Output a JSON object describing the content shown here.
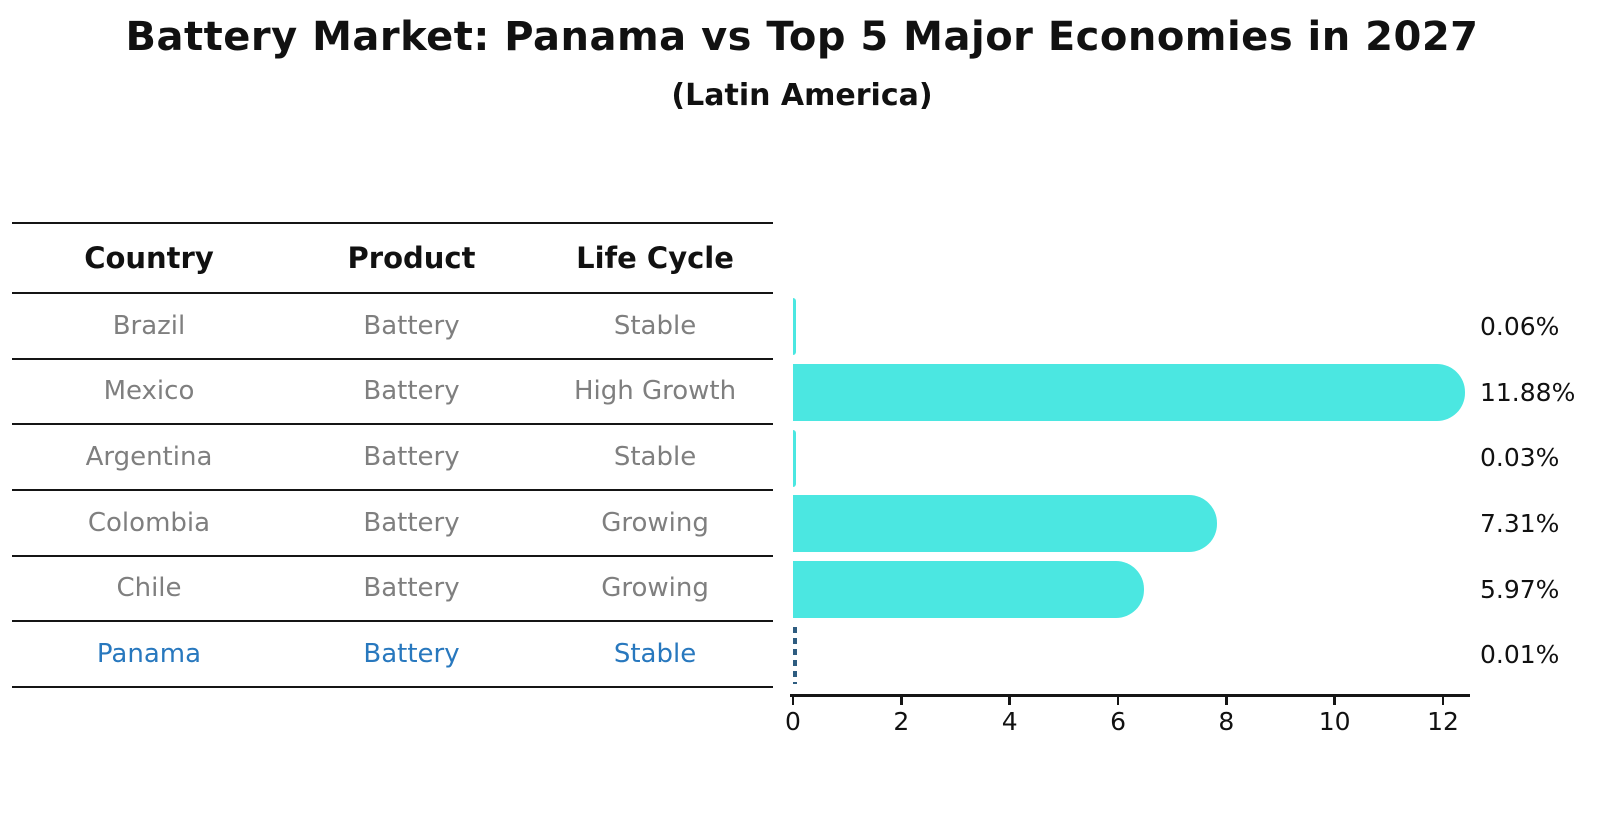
{
  "title": "Battery Market: Panama vs Top 5 Major Economies in 2027",
  "subtitle": "(Latin America)",
  "table": {
    "columns": [
      "Country",
      "Product",
      "Life Cycle"
    ],
    "rows": [
      {
        "country": "Brazil",
        "product": "Battery",
        "life_cycle": "Stable",
        "highlight": false
      },
      {
        "country": "Mexico",
        "product": "Battery",
        "life_cycle": "High Growth",
        "highlight": false
      },
      {
        "country": "Argentina",
        "product": "Battery",
        "life_cycle": "Stable",
        "highlight": false
      },
      {
        "country": "Colombia",
        "product": "Battery",
        "life_cycle": "Growing",
        "highlight": false
      },
      {
        "country": "Chile",
        "product": "Battery",
        "life_cycle": "Growing",
        "highlight": false
      },
      {
        "country": "Panama",
        "product": "Battery",
        "life_cycle": "Stable",
        "highlight": true
      }
    ]
  },
  "chart_data": {
    "type": "bar",
    "orientation": "horizontal",
    "title": "Battery Market: Panama vs Top 5 Major Economies in 2027",
    "subtitle": "(Latin America)",
    "categories": [
      "Brazil",
      "Mexico",
      "Argentina",
      "Colombia",
      "Chile",
      "Panama"
    ],
    "values": [
      0.06,
      11.88,
      0.03,
      7.31,
      5.97,
      0.01
    ],
    "value_labels": [
      "0.06%",
      "11.88%",
      "0.03%",
      "7.31%",
      "5.97%",
      "0.01%"
    ],
    "unit": "%",
    "x_ticks": [
      0,
      2,
      4,
      6,
      8,
      10,
      12
    ],
    "xlim": [
      0,
      12.5
    ],
    "grid": false,
    "legend": false,
    "bar_color": "#4BE7E1",
    "highlight": {
      "category": "Panama",
      "bar_style": "dashed-outline",
      "bar_outline_color": "#2E5C80",
      "text_color": "#2878BE"
    }
  },
  "colors": {
    "background": "#FFFFFF",
    "bar": "#4BE7E1",
    "table_text": "#7F7F7F",
    "header_text": "#111111",
    "highlight_text": "#2878BE",
    "line": "#151515",
    "value_text": "#111111"
  }
}
